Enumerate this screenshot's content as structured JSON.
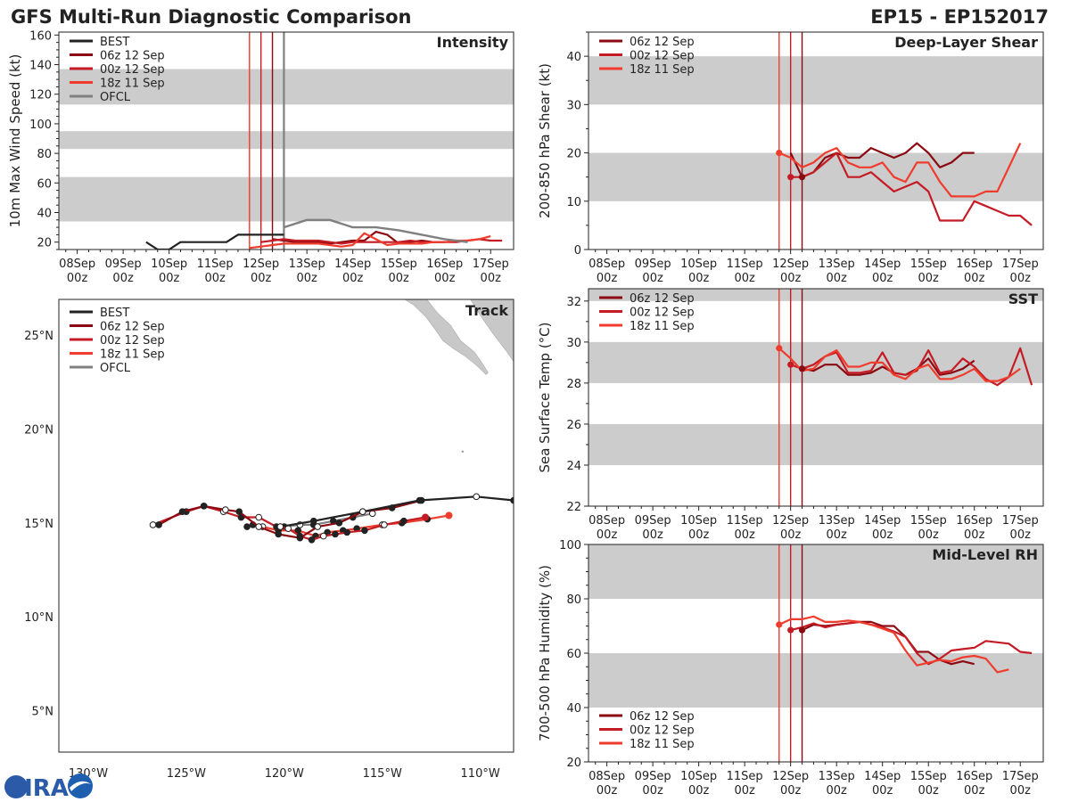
{
  "header": {
    "title": "GFS Multi-Run Diagnostic Comparison",
    "storm_id": "EP15 - EP152017",
    "logo_text": "CIRA"
  },
  "colors": {
    "run_06z": "#8b0a12",
    "run_00z": "#c41b24",
    "run_18z": "#ef3c2d",
    "best": "#222222",
    "ofcl": "#808080",
    "band": "#cccccc",
    "land": "#c8c8c8"
  },
  "time_axis": {
    "ticks": [
      "08Sep\n00z",
      "09Sep\n00z",
      "10Sep\n00z",
      "11Sep\n00z",
      "12Sep\n00z",
      "13Sep\n00z",
      "14Sep\n00z",
      "15Sep\n00z",
      "16Sep\n00z",
      "17Sep\n00z"
    ],
    "start_day": 7.6,
    "end_day": 17.5,
    "run_lines_day": [
      11.75,
      12.0,
      12.25
    ],
    "ofcl_line_day": 12.5
  },
  "chart_data": [
    {
      "id": "intensity",
      "type": "line",
      "title": "Intensity",
      "ylabel": "10m Max Wind Speed (kt)",
      "ylim": [
        15,
        162
      ],
      "yticks": [
        20,
        40,
        60,
        80,
        100,
        120,
        140,
        160
      ],
      "bands": [
        [
          34,
          64
        ],
        [
          83,
          95
        ],
        [
          113,
          137
        ]
      ],
      "legend": [
        "BEST",
        "06z 12 Sep",
        "00z 12 Sep",
        "18z 11 Sep",
        "OFCL"
      ],
      "series": [
        {
          "name": "BEST",
          "color_key": "best",
          "x": [
            9.5,
            9.75,
            10.0,
            10.25,
            10.5,
            10.75,
            11.0,
            11.25,
            11.5,
            11.75,
            12.0,
            12.25,
            12.5
          ],
          "values": [
            20,
            15,
            15,
            20,
            20,
            20,
            20,
            20,
            25,
            25,
            25,
            25,
            25
          ]
        },
        {
          "name": "06z 12 Sep",
          "color_key": "run_06z",
          "x": [
            12.25,
            12.5,
            12.75,
            13.0,
            13.25,
            13.5,
            13.75,
            14.0,
            14.25,
            14.5,
            14.75,
            15.0,
            15.25,
            15.5,
            15.75,
            16.0
          ],
          "values": [
            22,
            21,
            20,
            20,
            20,
            19,
            20,
            21,
            21,
            27,
            25,
            19,
            20,
            21,
            20,
            20
          ]
        },
        {
          "name": "00z 12 Sep",
          "color_key": "run_00z",
          "x": [
            12.0,
            12.25,
            12.5,
            12.75,
            13.0,
            13.25,
            13.5,
            13.75,
            14.0,
            14.25,
            14.5,
            14.75,
            15.0,
            15.25,
            15.5,
            15.75,
            16.0,
            16.25,
            16.5,
            16.75,
            17.0,
            17.25
          ],
          "values": [
            20,
            21,
            22,
            21,
            21,
            21,
            20,
            19,
            20,
            20,
            20,
            20,
            20,
            21,
            20,
            20,
            20,
            20,
            21,
            22,
            21,
            21
          ]
        },
        {
          "name": "18z 11 Sep",
          "color_key": "run_18z",
          "x": [
            11.75,
            12.0,
            12.25,
            12.5,
            12.75,
            13.0,
            13.25,
            13.5,
            13.75,
            14.0,
            14.25,
            14.5,
            14.75,
            15.0,
            15.25,
            15.5,
            15.75,
            16.0,
            16.25,
            16.5,
            16.75,
            17.0
          ],
          "values": [
            16,
            17,
            18,
            19,
            19,
            19,
            19,
            18,
            17,
            18,
            26,
            22,
            18,
            19,
            19,
            19,
            20,
            20,
            21,
            21,
            22,
            24
          ]
        },
        {
          "name": "OFCL",
          "color_key": "ofcl",
          "x": [
            12.5,
            13.0,
            13.5,
            14.0,
            14.5,
            15.0,
            15.5,
            16.0,
            16.5
          ],
          "values": [
            30,
            35,
            35,
            30,
            30,
            28,
            25,
            22,
            20
          ]
        }
      ]
    },
    {
      "id": "shear",
      "type": "line",
      "title": "Deep-Layer Shear",
      "ylabel": "200-850 hPa Shear (kt)",
      "ylim": [
        0,
        45
      ],
      "yticks": [
        0,
        10,
        20,
        30,
        40
      ],
      "bands": [
        [
          10,
          20
        ],
        [
          30,
          40
        ]
      ],
      "legend": [
        "06z 12 Sep",
        "00z 12 Sep",
        "18z 11 Sep"
      ],
      "series": [
        {
          "name": "06z 12 Sep",
          "color_key": "run_06z",
          "x": [
            12.0,
            12.25,
            12.5,
            12.75,
            13.0,
            13.25,
            13.5,
            13.75,
            14.0,
            14.25,
            14.5,
            14.75,
            15.0,
            15.25,
            15.5,
            15.75,
            16.0
          ],
          "values": [
            20,
            15,
            16,
            19,
            20,
            19,
            19,
            21,
            20,
            19,
            20,
            22,
            20,
            17,
            18,
            20,
            20
          ]
        },
        {
          "name": "00z 12 Sep",
          "color_key": "run_00z",
          "x": [
            12.0,
            12.25,
            12.5,
            12.75,
            13.0,
            13.25,
            13.5,
            13.75,
            14.0,
            14.25,
            14.5,
            14.75,
            15.0,
            15.25,
            15.5,
            15.75,
            16.0,
            16.25,
            16.5,
            16.75,
            17.0,
            17.25
          ],
          "values": [
            15,
            15,
            16,
            18,
            20,
            15,
            15,
            16,
            14,
            12,
            13,
            14,
            12,
            6,
            6,
            6,
            10,
            9,
            8,
            7,
            7,
            5
          ]
        },
        {
          "name": "18z 11 Sep",
          "color_key": "run_18z",
          "x": [
            11.75,
            12.0,
            12.25,
            12.5,
            12.75,
            13.0,
            13.25,
            13.5,
            13.75,
            14.0,
            14.25,
            14.5,
            14.75,
            15.0,
            15.25,
            15.5,
            15.75,
            16.0,
            16.25,
            16.5,
            16.75,
            17.0
          ],
          "values": [
            20,
            19,
            17,
            18,
            20,
            21,
            18,
            17,
            17,
            18,
            15,
            14,
            18,
            18,
            14,
            11,
            11,
            11,
            12,
            12,
            17,
            22
          ]
        }
      ],
      "markers": [
        {
          "x": 11.75,
          "y": 20,
          "color_key": "run_18z"
        },
        {
          "x": 12.0,
          "y": 15,
          "color_key": "run_00z"
        },
        {
          "x": 12.25,
          "y": 15,
          "color_key": "run_06z"
        }
      ]
    },
    {
      "id": "sst",
      "type": "line",
      "title": "SST",
      "ylabel": "Sea Surface Temp (°C)",
      "ylim": [
        22,
        32.6
      ],
      "yticks": [
        22,
        24,
        26,
        28,
        30,
        32
      ],
      "bands": [
        [
          24,
          26
        ],
        [
          28,
          30
        ],
        [
          32,
          34
        ]
      ],
      "legend": [
        "06z 12 Sep",
        "00z 12 Sep",
        "18z 11 Sep"
      ],
      "series": [
        {
          "name": "06z 12 Sep",
          "color_key": "run_06z",
          "x": [
            12.25,
            12.5,
            12.75,
            13.0,
            13.25,
            13.5,
            13.75,
            14.0,
            14.25,
            14.5,
            14.75,
            15.0,
            15.25,
            15.5,
            15.75,
            16.0
          ],
          "values": [
            28.7,
            28.6,
            28.9,
            28.9,
            28.4,
            28.4,
            28.5,
            28.8,
            28.5,
            28.4,
            28.7,
            29.2,
            28.4,
            28.5,
            28.7,
            29.1
          ]
        },
        {
          "name": "00z 12 Sep",
          "color_key": "run_00z",
          "x": [
            12.0,
            12.25,
            12.5,
            12.75,
            13.0,
            13.25,
            13.5,
            13.75,
            14.0,
            14.25,
            14.5,
            14.75,
            15.0,
            15.25,
            15.5,
            15.75,
            16.0,
            16.25,
            16.5,
            16.75,
            17.0,
            17.25
          ],
          "values": [
            28.9,
            28.7,
            28.9,
            29.3,
            29.5,
            28.5,
            28.5,
            28.6,
            29.5,
            28.5,
            28.4,
            28.6,
            29.6,
            28.5,
            28.6,
            29.2,
            28.8,
            28.2,
            27.9,
            28.3,
            29.7,
            27.9
          ]
        },
        {
          "name": "18z 11 Sep",
          "color_key": "run_18z",
          "x": [
            11.75,
            12.0,
            12.25,
            12.5,
            12.75,
            13.0,
            13.25,
            13.5,
            13.75,
            14.0,
            14.25,
            14.5,
            14.75,
            15.0,
            15.25,
            15.5,
            15.75,
            16.0,
            16.25,
            16.5,
            16.75,
            17.0
          ],
          "values": [
            29.7,
            29.2,
            28.6,
            28.7,
            29.3,
            29.6,
            28.8,
            28.8,
            29.0,
            29.0,
            28.4,
            28.2,
            28.7,
            28.9,
            28.2,
            28.2,
            28.4,
            28.7,
            28.1,
            28.1,
            28.3,
            28.7
          ]
        }
      ],
      "markers": [
        {
          "x": 11.75,
          "y": 29.7,
          "color_key": "run_18z"
        },
        {
          "x": 12.0,
          "y": 28.9,
          "color_key": "run_00z"
        },
        {
          "x": 12.25,
          "y": 28.7,
          "color_key": "run_06z"
        }
      ]
    },
    {
      "id": "rh",
      "type": "line",
      "title": "Mid-Level RH",
      "ylabel": "700-500 hPa Humidity (%)",
      "ylim": [
        20,
        100
      ],
      "yticks": [
        20,
        40,
        60,
        80,
        100
      ],
      "bands": [
        [
          40,
          60
        ],
        [
          80,
          100
        ]
      ],
      "legend": [
        "06z 12 Sep",
        "00z 12 Sep",
        "18z 11 Sep"
      ],
      "series": [
        {
          "name": "06z 12 Sep",
          "color_key": "run_06z",
          "x": [
            12.25,
            12.5,
            12.75,
            13.0,
            13.25,
            13.5,
            13.75,
            14.0,
            14.25,
            14.5,
            14.75,
            15.0,
            15.25,
            15.5,
            15.75,
            16.0
          ],
          "values": [
            68.5,
            70.5,
            70,
            70.5,
            71,
            71.5,
            71.5,
            70,
            70,
            66,
            60.5,
            60.5,
            57.5,
            56,
            57,
            56
          ]
        },
        {
          "name": "00z 12 Sep",
          "color_key": "run_00z",
          "x": [
            12.0,
            12.25,
            12.5,
            12.75,
            13.0,
            13.25,
            13.5,
            13.75,
            14.0,
            14.25,
            14.5,
            14.75,
            15.0,
            15.25,
            15.5,
            15.75,
            16.0,
            16.25,
            16.5,
            16.75,
            17.0,
            17.25
          ],
          "values": [
            68.5,
            69.5,
            71,
            69.5,
            70.5,
            71,
            71.5,
            70.5,
            69.5,
            68,
            66,
            60,
            56,
            58,
            61,
            61.5,
            62,
            64.5,
            64,
            63.5,
            60.5,
            60
          ]
        },
        {
          "name": "18z 11 Sep",
          "color_key": "run_18z",
          "x": [
            11.75,
            12.0,
            12.25,
            12.5,
            12.75,
            13.0,
            13.25,
            13.5,
            13.75,
            14.0,
            14.25,
            14.5,
            14.75,
            15.0,
            15.25,
            15.5,
            15.75,
            16.0,
            16.25,
            16.5,
            16.75,
            17.0
          ],
          "values": [
            70.5,
            72.5,
            72.5,
            73.5,
            71.5,
            71.5,
            72,
            71.5,
            70.5,
            69,
            67.5,
            61,
            55.5,
            56.5,
            57.5,
            57,
            58.5,
            59,
            58,
            53,
            54,
            null
          ]
        }
      ],
      "markers": [
        {
          "x": 11.75,
          "y": 70.5,
          "color_key": "run_18z"
        },
        {
          "x": 12.0,
          "y": 68.5,
          "color_key": "run_00z"
        },
        {
          "x": 12.25,
          "y": 68.5,
          "color_key": "run_06z"
        }
      ]
    },
    {
      "id": "track",
      "type": "line",
      "title": "Track",
      "xlim": [
        -131.5,
        -108.3
      ],
      "ylim": [
        2.8,
        26.9
      ],
      "xticks": [
        -130,
        -125,
        -120,
        -115,
        -110
      ],
      "xtick_labels": [
        "130°W",
        "125°W",
        "120°W",
        "115°W",
        "110°W"
      ],
      "yticks": [
        5,
        10,
        15,
        20,
        25
      ],
      "ytick_labels": [
        "5°N",
        "10°N",
        "15°N",
        "20°N",
        "25°N"
      ],
      "legend": [
        "BEST",
        "06z 12 Sep",
        "00z 12 Sep",
        "18z 11 Sep",
        "OFCL"
      ],
      "series": [
        {
          "name": "BEST",
          "color_key": "best",
          "lon": [
            -108.3,
            -110.2,
            -113.1,
            -116.0,
            -118.5,
            -120.2
          ],
          "lat": [
            16.2,
            16.4,
            16.2,
            15.6,
            15.1,
            14.8
          ],
          "open": [
            false,
            true,
            false,
            true,
            false,
            true
          ]
        },
        {
          "name": "06z 12 Sep",
          "color_key": "run_06z",
          "lon": [
            -113.0,
            -114.5,
            -116.0,
            -117.2,
            -118.3,
            -119.2,
            -120.3,
            -121.3,
            -122.3,
            -123.0,
            -124.1,
            -125.2,
            -126.4
          ],
          "lat": [
            16.2,
            15.8,
            15.6,
            15.0,
            14.8,
            14.2,
            14.4,
            14.8,
            15.6,
            15.7,
            15.9,
            15.6,
            14.9
          ],
          "open": [
            false,
            false,
            true,
            false,
            true,
            false,
            false,
            true,
            false,
            true,
            false,
            false,
            false
          ]
        },
        {
          "name": "00z 12 Sep",
          "color_key": "run_00z",
          "lon": [
            -112.8,
            -113.9,
            -114.9,
            -115.9,
            -116.8,
            -117.4,
            -118.0,
            -118.6,
            -119.2,
            -119.8,
            -120.4,
            -121.3,
            -122.2,
            -123.1,
            -124.1,
            -125.0,
            -126.7
          ],
          "lat": [
            15.3,
            15.1,
            14.9,
            14.6,
            14.5,
            14.4,
            14.3,
            14.1,
            14.3,
            14.7,
            14.8,
            15.3,
            15.3,
            15.6,
            15.9,
            15.6,
            14.9
          ],
          "open": [
            false,
            false,
            true,
            false,
            false,
            false,
            true,
            false,
            false,
            true,
            false,
            true,
            false,
            true,
            false,
            false,
            true
          ]
        },
        {
          "name": "18z 11 Sep",
          "color_key": "run_18z",
          "lon": [
            -111.6,
            -112.7,
            -114.0,
            -115.0,
            -116.3,
            -117.0,
            -117.8,
            -118.4,
            -119.3,
            -120.3,
            -121.1,
            -121.6,
            -121.9
          ],
          "lat": [
            15.4,
            15.2,
            15.0,
            14.9,
            14.7,
            14.6,
            14.5,
            14.3,
            14.6,
            14.6,
            14.8,
            14.9,
            14.8
          ],
          "open": [
            true,
            false,
            false,
            true,
            false,
            false,
            false,
            false,
            false,
            false,
            true,
            false,
            false
          ]
        },
        {
          "name": "OFCL",
          "color_key": "ofcl",
          "lon": [
            -120.0,
            -119.2,
            -118.5,
            -117.5,
            -116.5,
            -115.5
          ],
          "lat": [
            14.8,
            14.9,
            14.9,
            15.1,
            15.3,
            15.5
          ],
          "open": [
            false,
            true,
            false,
            false,
            false,
            true
          ]
        }
      ]
    }
  ]
}
